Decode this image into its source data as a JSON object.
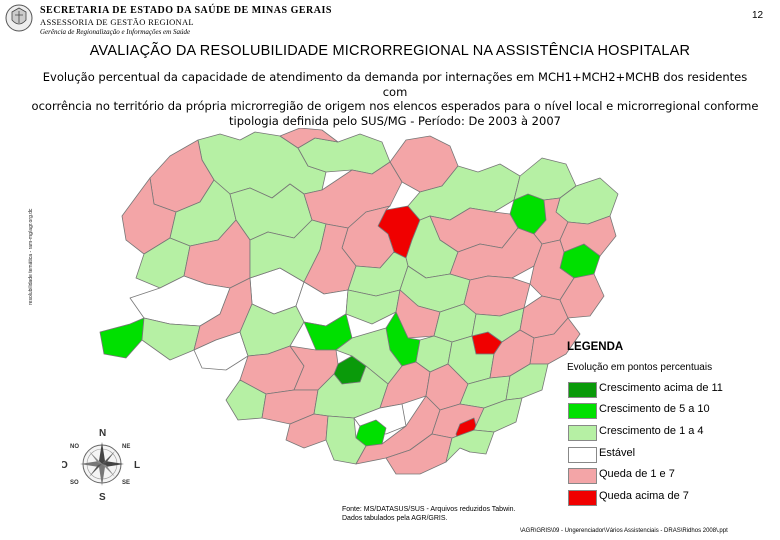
{
  "header": {
    "secretaria": "SECRETARIA DE ESTADO DA SAÚDE DE MINAS GERAIS",
    "assessoria": "ASSESSORIA DE GESTÃO REGIONAL",
    "gerencia": "Gerência de Regionalização e Informações em Saúde",
    "page_number": "12"
  },
  "title": "AVALIAÇÃO DA RESOLUBILIDADE MICRORREGIONAL NA ASSISTÊNCIA HOSPITALAR",
  "subtitle": {
    "line1": "Evolução percentual da capacidade de atendimento da demanda por internações em MCH1+MCH2+MCHB dos residentes com",
    "line2": "ocorrência no território da própria microrregião de origem nos elencos esperados para o nível local e microrregional conforme",
    "line3": "tipologia definida pelo SUS/MG - Período: De 2003 à 2007"
  },
  "side_text": "resolubilidade temática - ram-mg/agr.org.dc",
  "legend": {
    "title": "LEGENDA",
    "subtitle": "Evolução em pontos percentuais",
    "items": [
      {
        "label": "Crescimento acima de 11",
        "color": "#0a9a0a"
      },
      {
        "label": "Crescimento de 5 a 10",
        "color": "#00e000"
      },
      {
        "label": "Crescimento de 1 a 4",
        "color": "#b6f0a4"
      },
      {
        "label": "Estável",
        "color": "#ffffff"
      },
      {
        "label": "Queda de 1 e 7",
        "color": "#f3a5a7"
      },
      {
        "label": "Queda acima de 7",
        "color": "#f00000"
      }
    ]
  },
  "compass": {
    "n": "N",
    "s": "S",
    "l": "L",
    "o": "O",
    "ne": "NE",
    "no": "NO",
    "se": "SE",
    "so": "SO"
  },
  "fonte": {
    "line1": "Fonte: MS/DATASUS/SUS - Arquivos reduzidos Tabwin.",
    "line2": "Dados tabulados pela AGR/GRIS."
  },
  "footer_path": "\\AGR\\GRIS\\09 - Ungerenciador\\Vários Assistenciais - DRAS\\Ridhos 2008\\.ppt"
}
